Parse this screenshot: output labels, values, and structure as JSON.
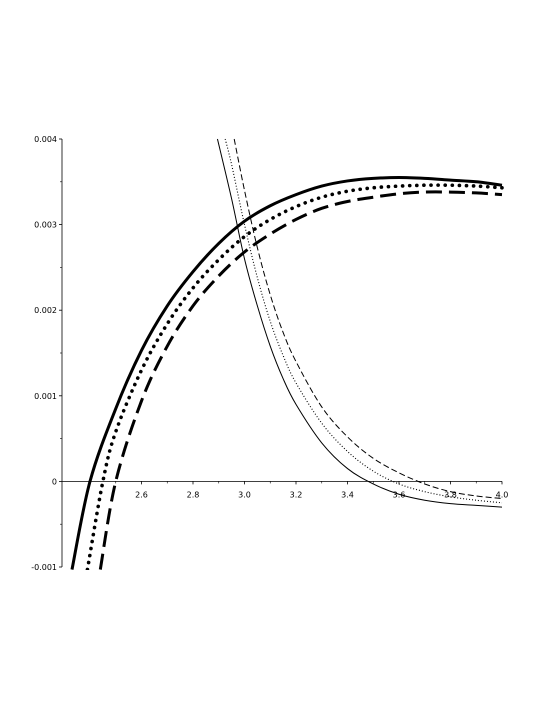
{
  "chart_data": {
    "type": "line",
    "title": "",
    "xlabel": "",
    "ylabel": "",
    "xlim": [
      2.3,
      4.0
    ],
    "ylim": [
      -0.001,
      0.004
    ],
    "x_ticks": [
      2.6,
      2.8,
      3.0,
      3.2,
      3.4,
      3.6,
      3.8,
      4.0
    ],
    "x_tick_labels": [
      "2.6",
      "2.8",
      "3.0",
      "3.2",
      "3.4",
      "3.6",
      "3.8",
      "4.0"
    ],
    "y_ticks": [
      -0.001,
      0,
      0.001,
      0.002,
      0.003,
      0.004
    ],
    "y_tick_labels": [
      "-0.001",
      "0",
      "0.001",
      "0.002",
      "0.003",
      "0.004"
    ],
    "grid": false,
    "legend": "none",
    "line_color": "#000000",
    "series": [
      {
        "style": "thick-solid",
        "x": [
          2.33,
          2.4,
          2.5,
          2.6,
          2.7,
          2.8,
          2.9,
          3.0,
          3.1,
          3.2,
          3.3,
          3.4,
          3.5,
          3.6,
          3.7,
          3.8,
          3.9,
          4.0
        ],
        "y": [
          -0.00103,
          0.0,
          0.00085,
          0.00153,
          0.00205,
          0.00245,
          0.00278,
          0.00304,
          0.00322,
          0.00335,
          0.00345,
          0.00351,
          0.00354,
          0.00355,
          0.00354,
          0.00352,
          0.0035,
          0.00346
        ]
      },
      {
        "style": "thick-dotted",
        "x": [
          2.39,
          2.45,
          2.5,
          2.6,
          2.7,
          2.8,
          2.9,
          3.0,
          3.1,
          3.2,
          3.3,
          3.4,
          3.5,
          3.6,
          3.7,
          3.8,
          3.9,
          4.0
        ],
        "y": [
          -0.00103,
          0.0,
          0.00058,
          0.0013,
          0.00184,
          0.00226,
          0.00259,
          0.00286,
          0.00306,
          0.00321,
          0.00332,
          0.00339,
          0.00343,
          0.00345,
          0.00346,
          0.00346,
          0.00345,
          0.00343
        ]
      },
      {
        "style": "thick-dashed",
        "x": [
          2.44,
          2.5,
          2.6,
          2.7,
          2.8,
          2.9,
          3.0,
          3.1,
          3.2,
          3.3,
          3.4,
          3.5,
          3.6,
          3.7,
          3.8,
          3.9,
          4.0
        ],
        "y": [
          -0.00103,
          0.0,
          0.00094,
          0.00158,
          0.00205,
          0.0024,
          0.00268,
          0.00289,
          0.00306,
          0.00319,
          0.00327,
          0.00332,
          0.00336,
          0.00338,
          0.00338,
          0.00337,
          0.00335
        ]
      },
      {
        "style": "thin-solid",
        "x": [
          2.895,
          2.95,
          3.0,
          3.05,
          3.1,
          3.15,
          3.2,
          3.3,
          3.4,
          3.5,
          3.6,
          3.7,
          3.8,
          3.9,
          4.0
        ],
        "y": [
          0.004,
          0.0033,
          0.0026,
          0.00205,
          0.00158,
          0.0012,
          0.0009,
          0.00045,
          0.00015,
          -3e-05,
          -0.00015,
          -0.00022,
          -0.00026,
          -0.00028,
          -0.0003
        ]
      },
      {
        "style": "thin-dotted",
        "x": [
          2.925,
          2.95,
          3.0,
          3.05,
          3.1,
          3.15,
          3.2,
          3.3,
          3.4,
          3.5,
          3.6,
          3.7,
          3.8,
          3.9,
          4.0
        ],
        "y": [
          0.004,
          0.0037,
          0.003,
          0.00238,
          0.00187,
          0.00147,
          0.00115,
          0.00068,
          0.00035,
          0.00012,
          -3e-05,
          -0.00012,
          -0.00018,
          -0.00022,
          -0.00025
        ]
      },
      {
        "style": "thin-dashed",
        "x": [
          2.96,
          3.0,
          3.05,
          3.1,
          3.15,
          3.2,
          3.3,
          3.4,
          3.5,
          3.6,
          3.7,
          3.8,
          3.9,
          4.0
        ],
        "y": [
          0.004,
          0.0034,
          0.00273,
          0.00218,
          0.00174,
          0.0014,
          0.00087,
          0.00052,
          0.00027,
          0.0001,
          -3e-05,
          -0.00012,
          -0.00017,
          -0.0002
        ]
      }
    ]
  }
}
